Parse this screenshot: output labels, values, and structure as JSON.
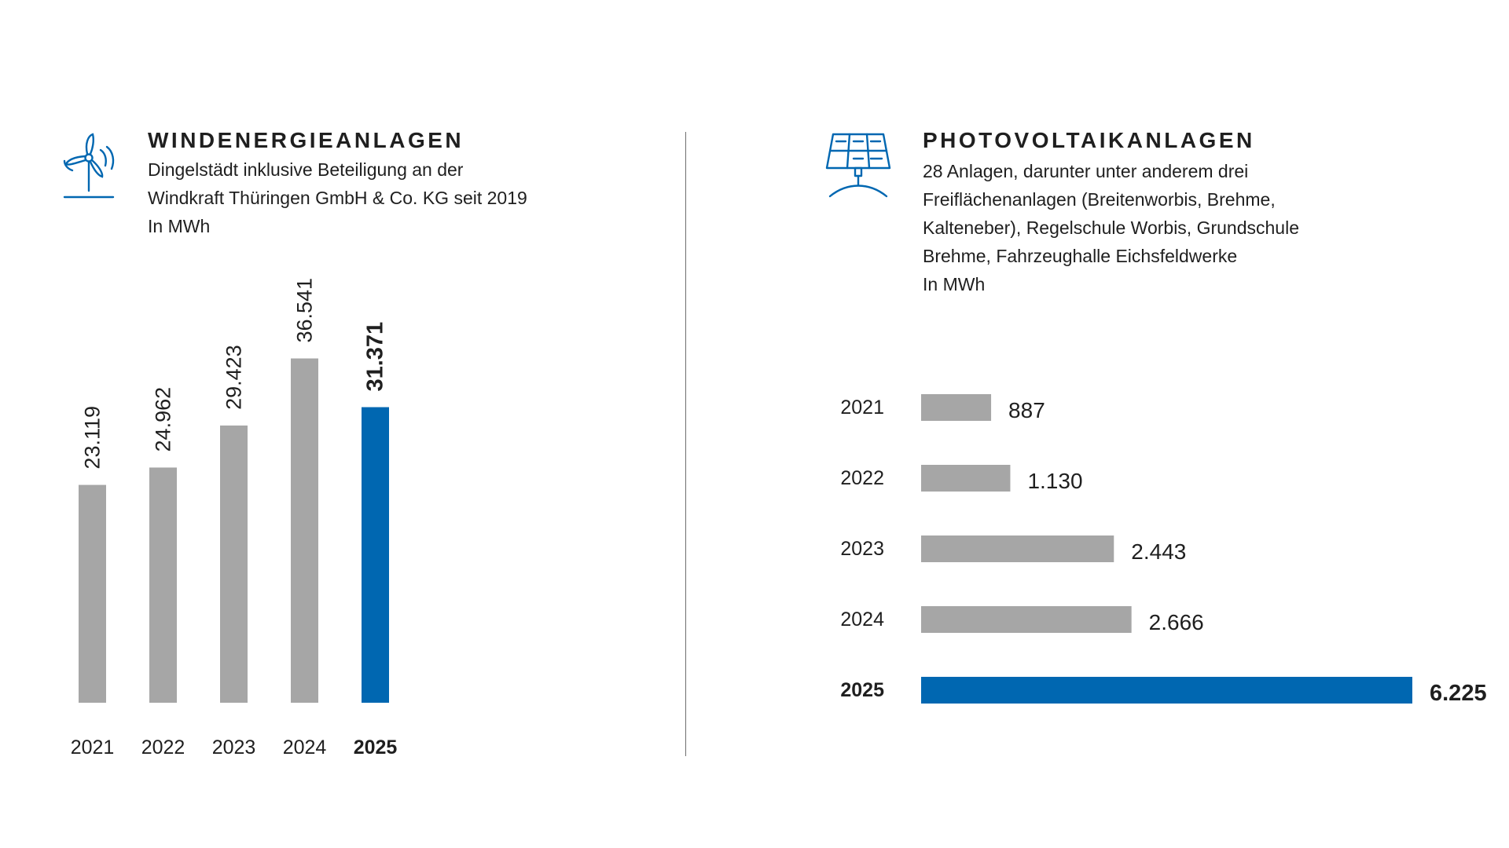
{
  "colors": {
    "bar_default": "#a6a6a6",
    "bar_highlight": "#0067b1",
    "icon": "#0067b1"
  },
  "wind": {
    "icon": "wind-turbine-icon",
    "title": "WINDENERGIEANLAGEN",
    "subtitle_lines": [
      "Dingelstädt inklusive Beteiligung an der",
      "Windkraft Thüringen GmbH & Co. KG seit 2019",
      "In MWh"
    ]
  },
  "pv": {
    "icon": "solar-panel-icon",
    "title": "PHOTOVOLTAIKANLAGEN",
    "subtitle_lines": [
      "28 Anlagen, darunter unter anderem drei",
      "Freiflächenanlagen (Breitenworbis, Brehme,",
      "Kalteneber), Regelschule Worbis, Grundschule",
      "Brehme, Fahrzeughalle Eichsfeldwerke",
      "In MWh"
    ]
  },
  "chart_data": [
    {
      "type": "bar",
      "orientation": "vertical",
      "title": "WINDENERGIEANLAGEN",
      "unit": "In MWh",
      "categories": [
        "2021",
        "2022",
        "2023",
        "2024",
        "2025"
      ],
      "values": [
        23119,
        24962,
        29423,
        36541,
        31371
      ],
      "value_labels": [
        "23.119",
        "24.962",
        "29.423",
        "36.541",
        "31.371"
      ],
      "highlight_index": 4,
      "ylim": [
        0,
        45000
      ],
      "grid": false,
      "legend": "none"
    },
    {
      "type": "bar",
      "orientation": "horizontal",
      "title": "PHOTOVOLTAIKANLAGEN",
      "unit": "In MWh",
      "categories": [
        "2021",
        "2022",
        "2023",
        "2024",
        "2025"
      ],
      "values": [
        887,
        1130,
        2443,
        2666,
        6225
      ],
      "value_labels": [
        "887",
        "1.130",
        "2.443",
        "2.666",
        "6.225"
      ],
      "highlight_index": 4,
      "xlim": [
        0,
        6225
      ],
      "grid": false,
      "legend": "none"
    }
  ]
}
